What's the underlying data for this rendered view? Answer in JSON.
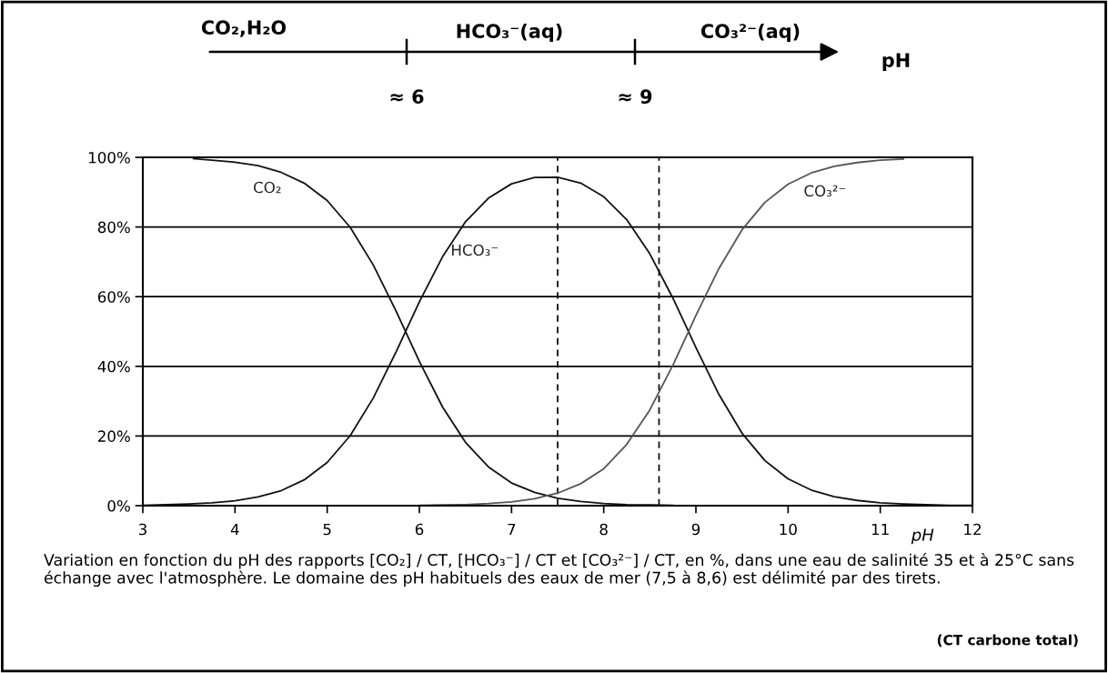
{
  "chart_data": {
    "type": "line",
    "annotations": [
      "CO₂,H₂O",
      "HCO₃⁻(aq)",
      "CO₃²⁻(aq)",
      "pH",
      "≈ 6",
      "≈ 9",
      "Variation en fonction du pH des rapports [CO₂] / CT, [HCO₃⁻] / CT et [CO₃²⁻] / CT, en %, dans une eau de salinité 35 et à 25°C sans échange avec l'atmosphère. Le domaine des pH habituels des eaux de mer (7,5 à 8,6) est délimité par des tirets.",
      "(CT carbone total)"
    ],
    "xlabel": "pH",
    "series": [
      {
        "name": "CO₂",
        "color": "#111111",
        "x": [
          3.55,
          3.75,
          4,
          4.25,
          4.5,
          4.75,
          5,
          5.25,
          5.5,
          5.75,
          6,
          6.25,
          6.5,
          6.75,
          7,
          7.25,
          7.5,
          7.75,
          8,
          8.25,
          8.5,
          8.75
        ],
        "values": [
          99.6,
          99.2,
          98.6,
          97.6,
          95.7,
          92.6,
          87.6,
          79.9,
          69.1,
          55.7,
          41.4,
          28.4,
          18.2,
          11.1,
          6.5,
          3.8,
          2.1,
          1.2,
          0.6,
          0.3,
          0.2,
          0.1
        ]
      },
      {
        "name": "HCO₃⁻",
        "color": "#111111",
        "x": [
          3,
          3.25,
          3.5,
          3.75,
          4,
          4.25,
          4.5,
          4.75,
          5,
          5.25,
          5.5,
          5.75,
          6,
          6.25,
          6.5,
          6.75,
          7,
          7.25,
          7.5,
          7.75,
          8,
          8.25,
          8.5,
          8.75,
          9,
          9.25,
          9.5,
          9.75,
          10,
          10.25,
          10.5,
          10.75,
          11,
          11.25,
          11.5,
          11.75,
          12
        ],
        "values": [
          0.1,
          0.3,
          0.5,
          0.8,
          1.4,
          2.5,
          4.3,
          7.4,
          12.4,
          20.1,
          30.9,
          44.3,
          58.5,
          71.4,
          81.5,
          88.3,
          92.4,
          94.2,
          94.3,
          92.6,
          88.7,
          82.1,
          72.3,
          59.6,
          45.4,
          31.9,
          20.8,
          12.9,
          7.7,
          4.5,
          2.6,
          1.5,
          0.8,
          0.5,
          0.3,
          0.1,
          0.1
        ]
      },
      {
        "name": "CO₃²⁻",
        "color": "#555555",
        "x": [
          6,
          6.25,
          6.5,
          6.75,
          7,
          7.25,
          7.5,
          7.75,
          8,
          8.25,
          8.5,
          8.75,
          9,
          9.25,
          9.5,
          9.75,
          10,
          10.25,
          10.5,
          10.75,
          11,
          11.25
        ],
        "values": [
          0.1,
          0.2,
          0.3,
          0.6,
          1.1,
          2.0,
          3.6,
          6.3,
          10.6,
          17.6,
          27.5,
          40.3,
          54.6,
          68.1,
          79.2,
          87.1,
          92.3,
          95.5,
          97.4,
          98.5,
          99.2,
          99.5
        ]
      }
    ],
    "xlim": [
      3,
      12
    ],
    "xticks": [
      3,
      4,
      5,
      6,
      7,
      8,
      9,
      10,
      11,
      12
    ],
    "ylim": [
      0,
      100
    ],
    "yticks": [
      {
        "value": 0,
        "label": "0%"
      },
      {
        "value": 20,
        "label": "20%"
      },
      {
        "value": 40,
        "label": "40%"
      },
      {
        "value": 60,
        "label": "60%"
      },
      {
        "value": 80,
        "label": "80%"
      },
      {
        "value": 100,
        "label": "100%"
      }
    ],
    "ref_lines": [
      {
        "axis": "x",
        "value": 7.5,
        "line_style": "dashed",
        "color": "#111111"
      },
      {
        "axis": "x",
        "value": 8.6,
        "line_style": "dashed",
        "color": "#111111"
      }
    ],
    "grid": "y"
  }
}
